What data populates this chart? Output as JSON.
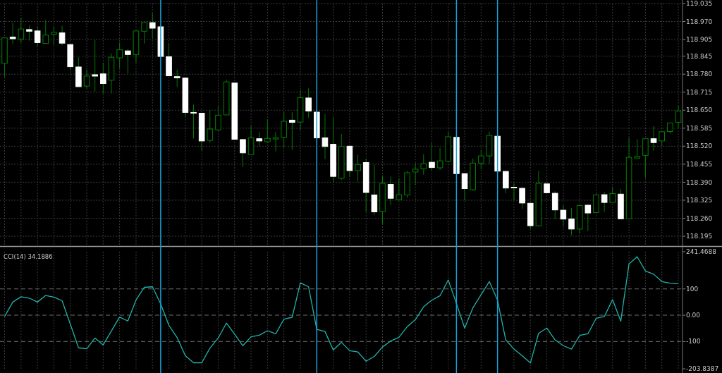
{
  "chart_data": [
    {
      "type": "candlestick",
      "categories": [
        null,
        null,
        null,
        null,
        null,
        null,
        null,
        null,
        null,
        null,
        null,
        null,
        null,
        null,
        null,
        null,
        null,
        null,
        null,
        null,
        null,
        null,
        null,
        null,
        null,
        null,
        null,
        null,
        null,
        null,
        null,
        null,
        null,
        null,
        null,
        null,
        null,
        null,
        null,
        null,
        null,
        null,
        null,
        null,
        null,
        null,
        null,
        null,
        null,
        null,
        null,
        null,
        null,
        null,
        null,
        null,
        null,
        null,
        null,
        null,
        null,
        null,
        null,
        null,
        null,
        null,
        null,
        null,
        null,
        null,
        null,
        null,
        null,
        null,
        null,
        null,
        null,
        null,
        null,
        null,
        null,
        null,
        null
      ],
      "ohlc": [
        [
          118.819,
          118.911,
          118.771,
          118.911
        ],
        [
          118.914,
          118.966,
          118.889,
          118.908
        ],
        [
          118.907,
          118.983,
          118.894,
          118.943
        ],
        [
          118.941,
          118.955,
          118.901,
          118.935
        ],
        [
          118.936,
          118.951,
          118.88,
          118.894
        ],
        [
          118.891,
          118.975,
          118.891,
          118.921
        ],
        [
          118.924,
          118.951,
          118.884,
          118.931
        ],
        [
          118.929,
          118.955,
          118.884,
          118.892
        ],
        [
          118.887,
          118.887,
          118.796,
          118.807
        ],
        [
          118.806,
          118.842,
          118.735,
          118.735
        ],
        [
          118.737,
          118.796,
          118.729,
          118.773
        ],
        [
          118.778,
          118.903,
          118.717,
          118.773
        ],
        [
          118.781,
          118.822,
          118.71,
          118.746
        ],
        [
          118.758,
          118.855,
          118.71,
          118.841
        ],
        [
          118.839,
          118.894,
          118.802,
          118.868
        ],
        [
          118.864,
          118.872,
          118.782,
          118.851
        ],
        [
          118.851,
          118.936,
          118.821,
          118.936
        ],
        [
          118.935,
          118.966,
          118.891,
          118.966
        ],
        [
          118.966,
          119.0,
          118.909,
          118.946
        ],
        [
          118.951,
          118.951,
          118.844,
          118.844
        ],
        [
          118.843,
          118.893,
          118.774,
          118.774
        ],
        [
          118.771,
          118.796,
          118.734,
          118.767
        ],
        [
          118.766,
          118.766,
          118.627,
          118.642
        ],
        [
          118.642,
          118.67,
          118.548,
          118.639
        ],
        [
          118.639,
          118.639,
          118.504,
          118.539
        ],
        [
          118.541,
          118.65,
          118.533,
          118.582
        ],
        [
          118.579,
          118.667,
          118.579,
          118.632
        ],
        [
          118.633,
          118.76,
          118.633,
          118.752
        ],
        [
          118.748,
          118.748,
          118.545,
          118.545
        ],
        [
          118.544,
          118.544,
          118.445,
          118.496
        ],
        [
          118.49,
          118.594,
          118.49,
          118.55
        ],
        [
          118.547,
          118.57,
          118.52,
          118.539
        ],
        [
          118.536,
          118.616,
          118.533,
          118.548
        ],
        [
          118.546,
          118.572,
          118.501,
          118.55
        ],
        [
          118.552,
          118.643,
          118.516,
          118.61
        ],
        [
          118.614,
          118.643,
          118.506,
          118.606
        ],
        [
          118.607,
          118.723,
          118.579,
          118.695
        ],
        [
          118.694,
          118.729,
          118.623,
          118.647
        ],
        [
          118.643,
          118.643,
          118.55,
          118.55
        ],
        [
          118.55,
          118.636,
          118.474,
          118.519
        ],
        [
          118.527,
          118.623,
          118.386,
          118.411
        ],
        [
          118.404,
          118.564,
          118.399,
          118.519
        ],
        [
          118.52,
          118.52,
          118.409,
          118.432
        ],
        [
          118.432,
          118.489,
          118.392,
          118.454
        ],
        [
          118.461,
          118.476,
          118.283,
          118.353
        ],
        [
          118.344,
          118.453,
          118.271,
          118.283
        ],
        [
          118.284,
          118.414,
          118.238,
          118.386
        ],
        [
          118.382,
          118.411,
          118.308,
          118.332
        ],
        [
          118.327,
          118.403,
          118.323,
          118.345
        ],
        [
          118.344,
          118.431,
          118.334,
          118.424
        ],
        [
          118.427,
          118.459,
          118.38,
          118.437
        ],
        [
          118.438,
          118.491,
          118.417,
          118.457
        ],
        [
          118.462,
          118.533,
          118.432,
          118.443
        ],
        [
          118.442,
          118.514,
          118.434,
          118.467
        ],
        [
          118.466,
          118.572,
          118.466,
          118.554
        ],
        [
          118.552,
          118.552,
          118.421,
          118.421
        ],
        [
          118.421,
          118.421,
          118.324,
          118.367
        ],
        [
          118.363,
          118.476,
          118.359,
          118.459
        ],
        [
          118.459,
          118.506,
          118.436,
          118.485
        ],
        [
          118.485,
          118.573,
          118.456,
          118.559
        ],
        [
          118.556,
          118.556,
          118.43,
          118.43
        ],
        [
          118.429,
          118.429,
          118.35,
          118.369
        ],
        [
          118.372,
          118.388,
          118.324,
          118.37
        ],
        [
          118.368,
          118.372,
          118.294,
          118.315
        ],
        [
          118.314,
          118.314,
          118.221,
          118.233
        ],
        [
          118.233,
          118.431,
          118.233,
          118.386
        ],
        [
          118.384,
          118.384,
          118.349,
          118.352
        ],
        [
          118.35,
          118.357,
          118.257,
          118.29
        ],
        [
          118.289,
          118.307,
          118.233,
          118.257
        ],
        [
          118.257,
          118.297,
          118.198,
          118.221
        ],
        [
          118.221,
          118.306,
          118.204,
          118.306
        ],
        [
          118.307,
          118.31,
          118.213,
          118.279
        ],
        [
          118.28,
          118.349,
          118.28,
          118.344
        ],
        [
          118.345,
          118.355,
          118.283,
          118.317
        ],
        [
          118.317,
          118.374,
          118.317,
          118.349
        ],
        [
          118.347,
          118.365,
          118.258,
          118.258
        ],
        [
          118.258,
          118.55,
          118.258,
          118.48
        ],
        [
          118.477,
          118.545,
          118.477,
          118.483
        ],
        [
          118.487,
          118.547,
          118.406,
          118.547
        ],
        [
          118.547,
          118.593,
          118.504,
          118.533
        ],
        [
          118.539,
          118.572,
          118.52,
          118.572
        ],
        [
          118.573,
          118.604,
          118.565,
          118.604
        ],
        [
          118.606,
          118.667,
          118.586,
          118.647
        ]
      ],
      "color": "#007a00",
      "colors": [
        "#008000",
        "#ffffff",
        "#008000",
        "#ffffff",
        "#ffffff",
        "#008000",
        "#008000",
        "#ffffff",
        "#ffffff",
        "#ffffff",
        "#008000",
        "#ffffff",
        "#ffffff",
        "#008000",
        "#008000",
        "#ffffff",
        "#008000",
        "#008000",
        "#ffffff",
        "#ffffff",
        "#ffffff",
        "#ffffff",
        "#ffffff",
        "#ffffff",
        "#ffffff",
        "#008000",
        "#008000",
        "#008000",
        "#ffffff",
        "#ffffff",
        "#008000",
        "#ffffff",
        "#008000",
        "#008000",
        "#008000",
        "#ffffff",
        "#008000",
        "#ffffff",
        "#ffffff",
        "#ffffff",
        "#ffffff",
        "#008000",
        "#ffffff",
        "#008000",
        "#ffffff",
        "#ffffff",
        "#008000",
        "#ffffff",
        "#008000",
        "#008000",
        "#008000",
        "#008000",
        "#ffffff",
        "#008000",
        "#008000",
        "#ffffff",
        "#ffffff",
        "#008000",
        "#008000",
        "#008000",
        "#ffffff",
        "#ffffff",
        "#ffffff",
        "#ffffff",
        "#ffffff",
        "#008000",
        "#ffffff",
        "#ffffff",
        "#ffffff",
        "#ffffff",
        "#008000",
        "#ffffff",
        "#008000",
        "#ffffff",
        "#008000",
        "#ffffff",
        "#008000",
        "#008000",
        "#008000",
        "#ffffff",
        "#008000",
        "#008000",
        "#008000"
      ],
      "ylim": [
        118.162,
        119.035
      ],
      "yticks": [
        119.035,
        {
          "value": 118.97,
          "label": "118.970"
        },
        118.905,
        118.845,
        {
          "value": 118.78,
          "label": "118.780"
        },
        118.715,
        {
          "value": 118.65,
          "label": "118.650"
        },
        118.585,
        {
          "value": 118.52,
          "label": "118.520"
        },
        118.455,
        {
          "value": 118.39,
          "label": "118.390"
        },
        118.325,
        {
          "value": 118.26,
          "label": "118.260"
        },
        118.195
      ],
      "grid": true,
      "tick_labels": "y"
    },
    {
      "type": "line",
      "title": "CCI(14) 34.1886",
      "categories": [
        null,
        null,
        null,
        null,
        null,
        null,
        null,
        null,
        null,
        null,
        null,
        null,
        null,
        null,
        null,
        null,
        null,
        null,
        null,
        null,
        null,
        null,
        null,
        null,
        null,
        null,
        null,
        null,
        null,
        null,
        null,
        null,
        null,
        null,
        null,
        null,
        null,
        null,
        null,
        null,
        null,
        null,
        null,
        null,
        null,
        null,
        null,
        null,
        null,
        null,
        null,
        null,
        null,
        null,
        null,
        null,
        null,
        null,
        null,
        null,
        null,
        null,
        null,
        null,
        null,
        null,
        null,
        null,
        null,
        null,
        null,
        null,
        null,
        null,
        null,
        null,
        null,
        null,
        null,
        null,
        null,
        null,
        null
      ],
      "series": [
        {
          "color": "#20b2aa",
          "values": [
            -5,
            50,
            70,
            65,
            50,
            75,
            69,
            55,
            -34,
            -124,
            -128,
            -87,
            -113,
            -60,
            -7,
            -22,
            58,
            106,
            108,
            43,
            -39,
            -85,
            -154,
            -181,
            -181,
            -125,
            -87,
            -30,
            -72,
            -116,
            -82,
            -76,
            -59,
            -71,
            -15,
            -8,
            123,
            108,
            -54,
            -62,
            -132,
            -103,
            -135,
            -140,
            -175,
            -157,
            -121,
            -98,
            -84,
            -44,
            -17,
            32,
            57,
            74,
            134,
            44,
            -49,
            28,
            78,
            128,
            57,
            -94,
            -129,
            -154,
            -182,
            -69,
            -49,
            -94,
            -116,
            -129,
            -77,
            -71,
            -12,
            -5,
            59,
            -23,
            195,
            222,
            168,
            156,
            128,
            122,
            120
          ]
        }
      ],
      "ylim": [
        -203.8387,
        241.4688
      ],
      "yticks": [
        {
          "value": 241.4688,
          "label": "241.4688"
        },
        100,
        {
          "value": 0,
          "label": "0.00"
        },
        -100,
        {
          "value": -203.8387,
          "label": "-203.8387"
        }
      ],
      "ref_lines": [
        {
          "axis": "y",
          "value": 100,
          "color": "#707070",
          "line_style": "dashed"
        },
        {
          "axis": "y",
          "value": 0,
          "color": "#707070",
          "line_style": "dashed"
        },
        {
          "axis": "y",
          "value": -100,
          "color": "#707070",
          "line_style": "dashed"
        }
      ],
      "grid": "x",
      "tick_labels": "y",
      "line_style": "solid"
    }
  ]
}
